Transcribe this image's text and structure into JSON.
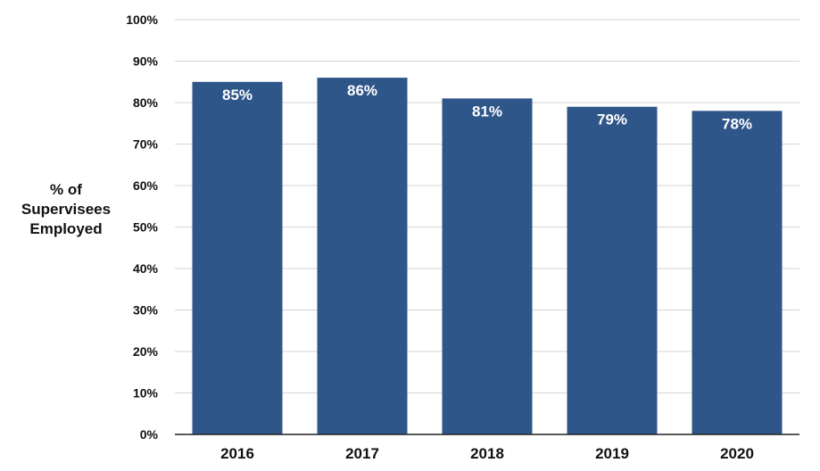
{
  "chart_data": {
    "type": "bar",
    "categories": [
      "2016",
      "2017",
      "2018",
      "2019",
      "2020"
    ],
    "values": [
      85,
      86,
      81,
      79,
      78
    ],
    "data_labels": [
      "85%",
      "86%",
      "81%",
      "79%",
      "78%"
    ],
    "title": "",
    "xlabel": "",
    "ylabel_lines": [
      "% of",
      "Supervisees",
      "Employed"
    ],
    "ylim": [
      0,
      100
    ],
    "yticks": [
      0,
      10,
      20,
      30,
      40,
      50,
      60,
      70,
      80,
      90,
      100
    ],
    "ytick_labels": [
      "0%",
      "10%",
      "20%",
      "30%",
      "40%",
      "50%",
      "60%",
      "70%",
      "80%",
      "90%",
      "100%"
    ],
    "grid": true,
    "legend": "none",
    "bar_color": "#2f5689"
  }
}
